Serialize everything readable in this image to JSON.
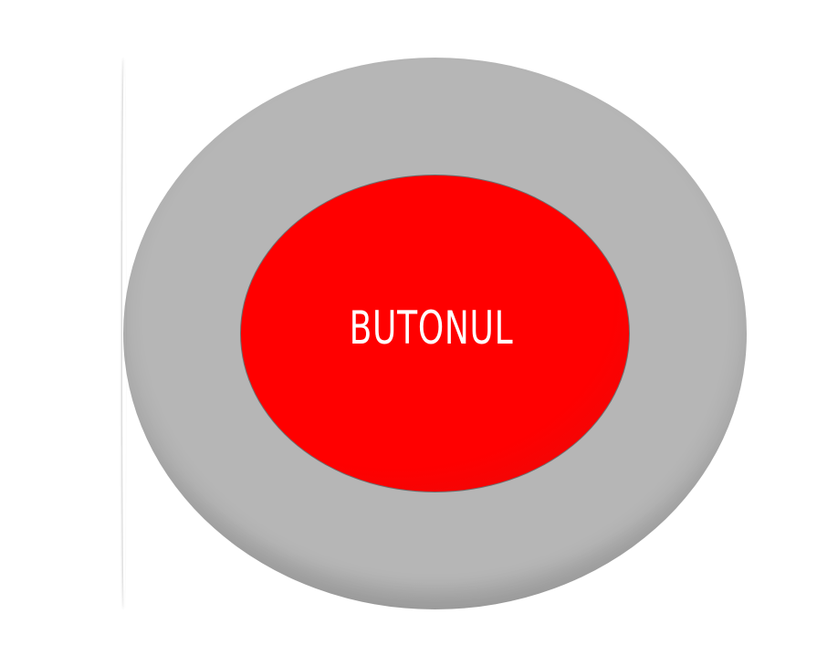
{
  "button": {
    "label": "Butonul",
    "colors": {
      "fill": "#ff0000",
      "label": "#ffffff",
      "ring": "#b6b6b6"
    }
  }
}
